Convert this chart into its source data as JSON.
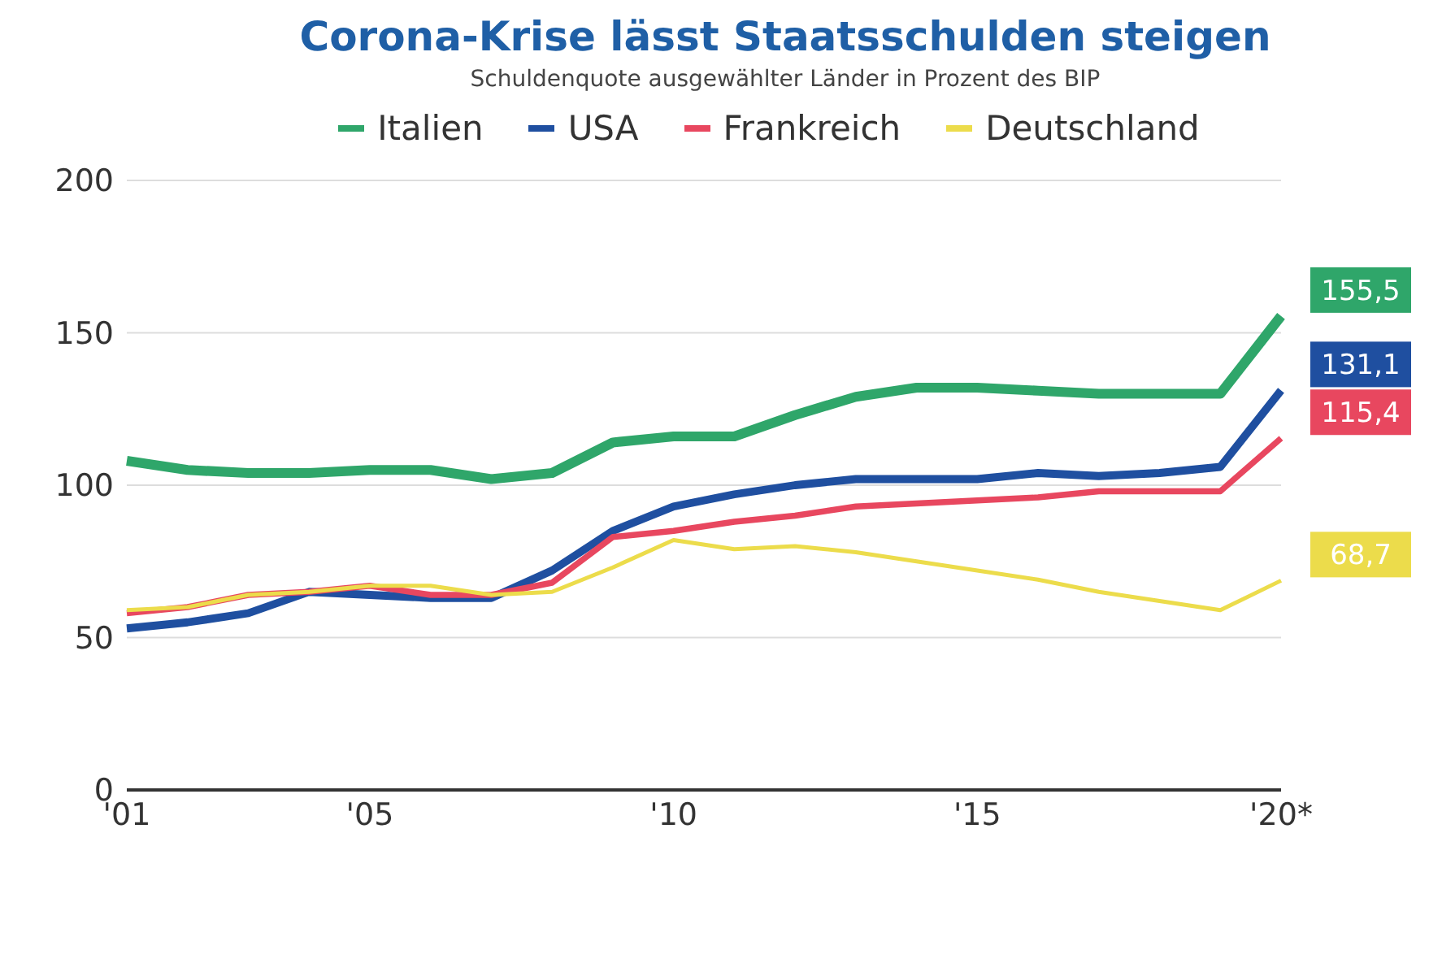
{
  "chart_data": {
    "type": "line",
    "title": "Corona-Krise lässt Staatsschulden steigen",
    "subtitle": "Schuldenquote ausgewählter Länder in Prozent des BIP",
    "categories": [
      "'01",
      null,
      null,
      null,
      "'05",
      null,
      null,
      null,
      null,
      "'10",
      null,
      null,
      null,
      null,
      "'15",
      null,
      null,
      null,
      null,
      "'20*"
    ],
    "ylim": [
      0,
      200
    ],
    "yticks": [
      0,
      50,
      100,
      150,
      200
    ],
    "grid": "y",
    "legend": "top",
    "marker": "none",
    "line_style": "solid",
    "series": [
      {
        "name": "Italien",
        "color": "#2fa66a",
        "values": [
          108,
          105,
          104,
          104,
          105,
          105,
          102,
          104,
          114,
          116,
          116,
          123,
          129,
          132,
          132,
          131,
          130,
          130,
          130,
          155.5
        ],
        "value_labels": [
          null,
          null,
          null,
          null,
          null,
          null,
          null,
          null,
          null,
          null,
          null,
          null,
          null,
          null,
          null,
          null,
          null,
          null,
          null,
          "155,5"
        ]
      },
      {
        "name": "USA",
        "color": "#1f4fa0",
        "values": [
          53,
          55,
          58,
          65,
          64,
          63,
          63,
          72,
          85,
          93,
          97,
          100,
          102,
          102,
          102,
          104,
          103,
          104,
          106,
          131.1
        ],
        "value_labels": [
          null,
          null,
          null,
          null,
          null,
          null,
          null,
          null,
          null,
          null,
          null,
          null,
          null,
          null,
          null,
          null,
          null,
          null,
          null,
          "131,1"
        ]
      },
      {
        "name": "Frankreich",
        "color": "#e8475f",
        "values": [
          58,
          60,
          64,
          65,
          67,
          64,
          64,
          68,
          83,
          85,
          88,
          90,
          93,
          94,
          95,
          96,
          98,
          98,
          98,
          115.4
        ],
        "value_labels": [
          null,
          null,
          null,
          null,
          null,
          null,
          null,
          null,
          null,
          null,
          null,
          null,
          null,
          null,
          null,
          null,
          null,
          null,
          null,
          "115,4"
        ]
      },
      {
        "name": "Deutschland",
        "color": "#ecdc4b",
        "values": [
          59,
          60,
          64,
          65,
          67,
          67,
          64,
          65,
          73,
          82,
          79,
          80,
          78,
          75,
          72,
          69,
          65,
          62,
          59,
          68.7
        ],
        "value_labels": [
          null,
          null,
          null,
          null,
          null,
          null,
          null,
          null,
          null,
          null,
          null,
          null,
          null,
          null,
          null,
          null,
          null,
          null,
          null,
          "68,7"
        ]
      }
    ]
  }
}
